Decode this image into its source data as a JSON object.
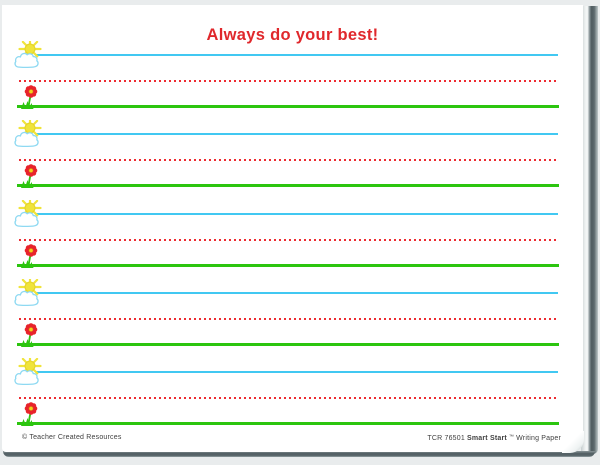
{
  "title": {
    "text": "Always do your best!",
    "color": "#e0282c"
  },
  "writing_rows": [
    {
      "top_line_icon": "sun-cloud-icon",
      "bottom_line_icon": "flower-icon",
      "written_content": ""
    },
    {
      "top_line_icon": "sun-cloud-icon",
      "bottom_line_icon": "flower-icon",
      "written_content": ""
    },
    {
      "top_line_icon": "sun-cloud-icon",
      "bottom_line_icon": "flower-icon",
      "written_content": ""
    },
    {
      "top_line_icon": "sun-cloud-icon",
      "bottom_line_icon": "flower-icon",
      "written_content": ""
    },
    {
      "top_line_icon": "sun-cloud-icon",
      "bottom_line_icon": "flower-icon",
      "written_content": ""
    }
  ],
  "line_styles": {
    "top_line": "solid cyan",
    "middle_line": "dashed red",
    "bottom_line": "solid green"
  },
  "footer": {
    "left_copyright": "© Teacher Created Resources",
    "right_code": "TCR 76501",
    "right_brand": "Smart Start",
    "right_trademark": "™",
    "right_product": "Writing Paper"
  },
  "colors": {
    "backdrop": "#e9eced",
    "page": "#ffffff",
    "title_red": "#e0282c",
    "line_top": "#41c8f2",
    "line_middle": "#ed2b31",
    "line_bottom": "#2cc50f",
    "footer_text": "#3f3f3f",
    "pad_edge": "#566368",
    "sun_yellow": "#f0e43a",
    "cloud_outline": "#8ed9f2",
    "flower_red": "#e8232b",
    "flower_center": "#f2d11b"
  }
}
